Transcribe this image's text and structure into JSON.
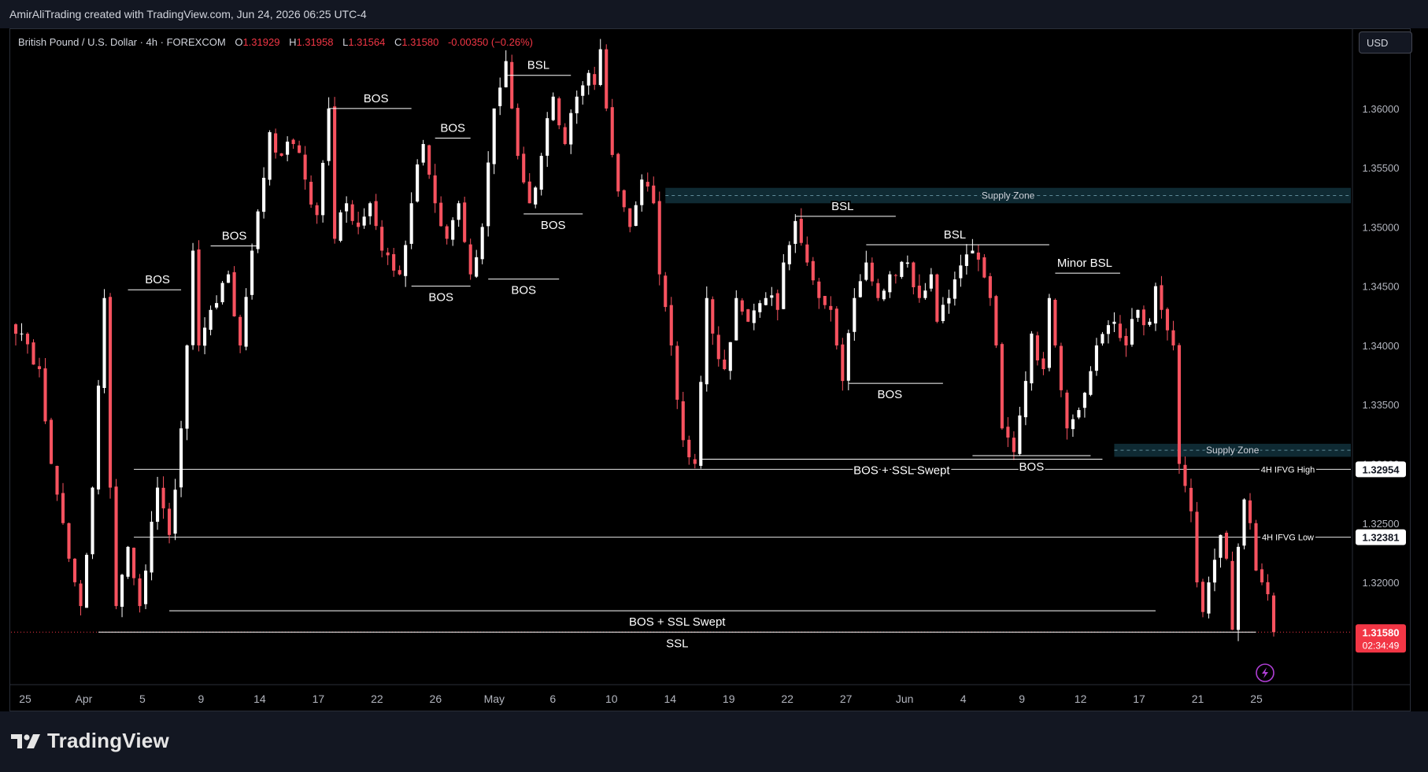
{
  "attribution": "AmirAliTrading created with TradingView.com, Jun 24, 2026 06:25 UTC-4",
  "symbol": {
    "name": "British Pound / U.S. Dollar · 4h · FOREXCOM",
    "ohlc": [
      {
        "label": "O",
        "value": "1.31929"
      },
      {
        "label": "H",
        "value": "1.31958"
      },
      {
        "label": "L",
        "value": "1.31564"
      },
      {
        "label": "C",
        "value": "1.31580"
      }
    ],
    "change": "-0.00350 (−0.26%)"
  },
  "currency_button": "USD",
  "brand": "TradingView",
  "colors": {
    "up": "#ffffff",
    "down": "#f7525f",
    "price_label": "#f23645",
    "supply_zone": "#0f2a33",
    "line": "#ffffff"
  },
  "chart_data": {
    "type": "candlestick",
    "symbol": "GBPUSD",
    "timeframe": "4h",
    "ylim": [
      1.3115,
      1.3665
    ],
    "y_ticks": [
      "1.36500",
      "1.36000",
      "1.35500",
      "1.35000",
      "1.34500",
      "1.34000",
      "1.33500",
      "1.33000",
      "1.32500",
      "1.32000"
    ],
    "x_ticks": [
      "25",
      "Apr",
      "5",
      "9",
      "14",
      "17",
      "22",
      "26",
      "May",
      "6",
      "10",
      "14",
      "19",
      "22",
      "27",
      "Jun",
      "4",
      "9",
      "12",
      "17",
      "21",
      "25"
    ],
    "last_price": "1.31580",
    "countdown": "02:34:49",
    "path": [
      [
        1.341,
        1
      ],
      [
        1.338,
        4
      ],
      [
        1.33,
        6
      ],
      [
        1.325,
        8
      ],
      [
        1.322,
        9
      ],
      [
        1.318,
        11
      ],
      [
        1.328,
        13
      ],
      [
        1.344,
        15
      ],
      [
        1.328,
        16
      ],
      [
        1.318,
        17
      ],
      [
        1.323,
        19
      ],
      [
        1.318,
        21
      ],
      [
        1.328,
        24
      ],
      [
        1.324,
        26
      ],
      [
        1.333,
        28
      ],
      [
        1.34,
        29
      ],
      [
        1.348,
        30
      ],
      [
        1.34,
        31
      ],
      [
        1.343,
        33
      ],
      [
        1.346,
        36
      ],
      [
        1.34,
        38
      ],
      [
        1.348,
        40
      ],
      [
        1.358,
        43
      ],
      [
        1.356,
        45
      ],
      [
        1.357,
        47
      ],
      [
        1.354,
        49
      ],
      [
        1.351,
        51
      ],
      [
        1.36,
        53
      ],
      [
        1.349,
        54
      ],
      [
        1.352,
        56
      ],
      [
        1.35,
        58
      ],
      [
        1.352,
        60
      ],
      [
        1.348,
        62
      ],
      [
        1.346,
        65
      ],
      [
        1.352,
        67
      ],
      [
        1.357,
        69
      ],
      [
        1.352,
        71
      ],
      [
        1.349,
        73
      ],
      [
        1.352,
        75
      ],
      [
        1.346,
        77
      ],
      [
        1.35,
        79
      ],
      [
        1.36,
        81
      ],
      [
        1.364,
        83
      ],
      [
        1.36,
        84
      ],
      [
        1.356,
        85
      ],
      [
        1.352,
        87
      ],
      [
        1.356,
        89
      ],
      [
        1.361,
        91
      ],
      [
        1.357,
        93
      ],
      [
        1.361,
        95
      ],
      [
        1.363,
        97
      ],
      [
        1.362,
        98
      ],
      [
        1.365,
        99
      ],
      [
        1.36,
        100
      ],
      [
        1.353,
        102
      ],
      [
        1.35,
        104
      ],
      [
        1.354,
        106
      ],
      [
        1.352,
        108
      ],
      [
        1.346,
        109
      ],
      [
        1.34,
        111
      ],
      [
        1.332,
        113
      ],
      [
        1.33,
        115
      ],
      [
        1.344,
        117
      ],
      [
        1.341,
        118
      ],
      [
        1.338,
        120
      ],
      [
        1.344,
        122
      ],
      [
        1.342,
        124
      ],
      [
        1.344,
        127
      ],
      [
        1.343,
        129
      ],
      [
        1.347,
        130
      ],
      [
        1.3505,
        132
      ],
      [
        1.347,
        134
      ],
      [
        1.344,
        136
      ],
      [
        1.343,
        138
      ],
      [
        1.34,
        139
      ],
      [
        1.337,
        140
      ],
      [
        1.344,
        142
      ],
      [
        1.347,
        144
      ],
      [
        1.344,
        146
      ],
      [
        1.346,
        148
      ],
      [
        1.347,
        151
      ],
      [
        1.344,
        153
      ],
      [
        1.346,
        155
      ],
      [
        1.342,
        156
      ],
      [
        1.344,
        158
      ],
      [
        1.348,
        162
      ],
      [
        1.344,
        165
      ],
      [
        1.34,
        166
      ],
      [
        1.333,
        167
      ],
      [
        1.331,
        169
      ],
      [
        1.337,
        171
      ],
      [
        1.341,
        172
      ],
      [
        1.338,
        174
      ],
      [
        1.344,
        175
      ],
      [
        1.34,
        176
      ],
      [
        1.333,
        178
      ],
      [
        1.336,
        181
      ],
      [
        1.34,
        183
      ],
      [
        1.342,
        186
      ],
      [
        1.34,
        188
      ],
      [
        1.343,
        190
      ],
      [
        1.342,
        192
      ],
      [
        1.345,
        193
      ],
      [
        1.343,
        194
      ],
      [
        1.34,
        196
      ],
      [
        1.33,
        197
      ],
      [
        1.326,
        199
      ],
      [
        1.32,
        200
      ],
      [
        1.3175,
        201
      ],
      [
        1.32,
        202
      ],
      [
        1.324,
        204
      ],
      [
        1.322,
        205
      ],
      [
        1.316,
        206
      ],
      [
        1.323,
        207
      ],
      [
        1.327,
        208
      ],
      [
        1.325,
        209
      ],
      [
        1.321,
        210
      ],
      [
        1.32,
        211
      ],
      [
        1.319,
        212
      ],
      [
        1.3158,
        213
      ]
    ],
    "annotations": [
      {
        "label": "BSL",
        "level": 1.3628,
        "x0": 83,
        "x1": 94,
        "label_x": 88.5,
        "label_pos": "above"
      },
      {
        "label": "BOS",
        "level": 1.36,
        "x0": 53,
        "x1": 67,
        "label_x": 61,
        "label_pos": "above"
      },
      {
        "label": "BOS",
        "level": 1.3575,
        "x0": 71,
        "x1": 77,
        "label_x": 74,
        "label_pos": "above"
      },
      {
        "label": "BOS",
        "level": 1.3484,
        "x0": 33,
        "x1": 41,
        "label_x": 37,
        "label_pos": "above"
      },
      {
        "label": "BOS",
        "level": 1.3447,
        "x0": 19,
        "x1": 28,
        "label_x": 24,
        "label_pos": "above"
      },
      {
        "label": "BOS",
        "level": 1.3511,
        "x0": 86,
        "x1": 96,
        "label_x": 91,
        "label_pos": "below"
      },
      {
        "label": "BOS",
        "level": 1.345,
        "x0": 67,
        "x1": 77,
        "label_x": 72,
        "label_pos": "below"
      },
      {
        "label": "BOS",
        "level": 1.3456,
        "x0": 80,
        "x1": 92,
        "label_x": 86,
        "label_pos": "below"
      },
      {
        "label": "BSL",
        "level": 1.3509,
        "x0": 132,
        "x1": 149,
        "label_x": 140,
        "label_pos": "above"
      },
      {
        "label": "BSL",
        "level": 1.3485,
        "x0": 144,
        "x1": 175,
        "label_x": 159,
        "label_pos": "above"
      },
      {
        "label": "Minor BSL",
        "level": 1.3461,
        "x0": 176,
        "x1": 187,
        "label_x": 181,
        "label_pos": "above"
      },
      {
        "label": "BOS",
        "level": 1.3368,
        "x0": 141,
        "x1": 157,
        "label_x": 148,
        "label_pos": "below"
      },
      {
        "label": "BOS",
        "level": 1.3307,
        "x0": 162,
        "x1": 182,
        "label_x": 172,
        "label_pos": "below"
      },
      {
        "label": "BOS + SSL Swept",
        "level": 1.3304,
        "x0": 116,
        "x1": 184,
        "label_x": 150,
        "label_pos": "below"
      },
      {
        "label": "BOS + SSL Swept",
        "level": 1.3176,
        "x0": 26,
        "x1": 193,
        "label_x": 112,
        "label_pos": "below"
      },
      {
        "label": "SSL",
        "level": 1.3158,
        "x0": 14,
        "x1": 210,
        "label_x": 112,
        "label_pos": "below"
      }
    ],
    "hlines": [
      {
        "label": "4H IFVG High",
        "value": "1.32954",
        "level": 1.32954,
        "x0": 20
      },
      {
        "label": "4H IFVG Low",
        "value": "1.32381",
        "level": 1.32381,
        "x0": 20
      }
    ],
    "zones": [
      {
        "label": "Supply Zone",
        "top": 1.3533,
        "bottom": 1.352,
        "x0": 110
      },
      {
        "label": "Supply Zone",
        "top": 1.3317,
        "bottom": 1.3306,
        "x0": 186
      }
    ]
  }
}
